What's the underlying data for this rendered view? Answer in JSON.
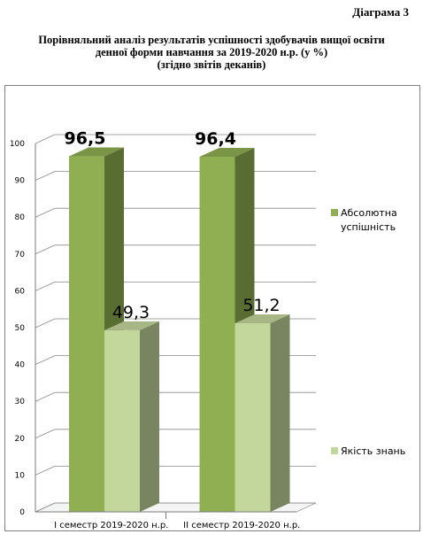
{
  "header": {
    "diagram_label": "Діаграма 3",
    "title_line1": "Порівняльний аналіз результатів успішності здобувачів вищої освіти",
    "title_line2": "денної форми навчання за 2019-2020 н.р. (у %)",
    "title_line3": "(згідно звітів деканів)"
  },
  "chart_data": {
    "type": "bar",
    "categories": [
      "I семестр 2019-2020 н.р.",
      "II семестр 2019-2020 н.р."
    ],
    "series": [
      {
        "name": "Абсолютна успішність",
        "values": [
          96.5,
          96.4
        ],
        "labels": [
          "96,5",
          "96,4"
        ],
        "color": "#8faf52"
      },
      {
        "name": "Якість знань",
        "values": [
          49.3,
          51.2
        ],
        "labels": [
          "49,3",
          "51,2"
        ],
        "color": "#c3d69b"
      }
    ],
    "legend_lines": [
      [
        "Абсолютна",
        "успішність"
      ],
      [
        "Якість знань"
      ]
    ],
    "yticks": [
      "0",
      "10",
      "20",
      "30",
      "40",
      "50",
      "60",
      "70",
      "80",
      "90",
      "100"
    ],
    "ylim": [
      0,
      100
    ],
    "grid": true,
    "legend_position": "right",
    "style": "3d-clustered-column"
  }
}
